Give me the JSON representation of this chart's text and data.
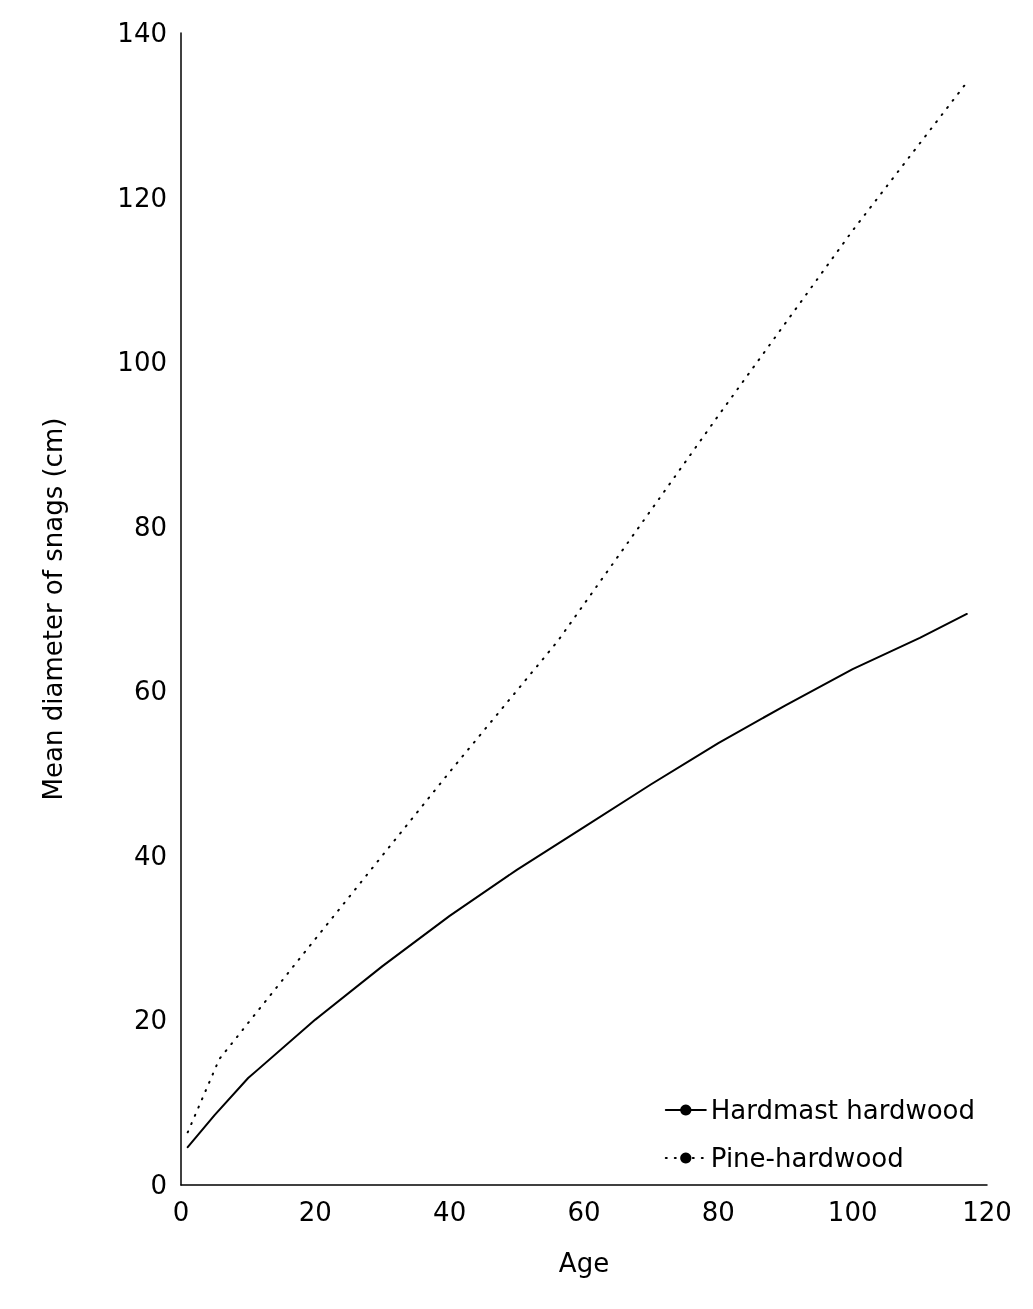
{
  "chart_data": {
    "type": "line",
    "xlabel": "Age",
    "ylabel": "Mean diameter of snags (cm)",
    "xlim": [
      0,
      120
    ],
    "ylim": [
      0,
      140
    ],
    "xticks": [
      0,
      20,
      40,
      60,
      80,
      100,
      120
    ],
    "yticks": [
      0,
      20,
      40,
      60,
      80,
      100,
      120,
      140
    ],
    "grid": false,
    "legend": "bottom right",
    "marker": "none",
    "series": [
      {
        "name": "Hardmast hardwood",
        "color": "#000000",
        "line_style": "solid",
        "x": [
          1,
          5,
          10,
          20,
          30,
          40,
          50,
          60,
          70,
          80,
          90,
          100,
          110,
          117
        ],
        "values": [
          4.6,
          8.5,
          13,
          20.1,
          26.6,
          32.7,
          38.3,
          43.5,
          48.7,
          53.7,
          58.3,
          62.7,
          66.5,
          69.4
        ]
      },
      {
        "name": "Pine-hardwood",
        "color": "#000000",
        "line_style": "dotted",
        "x": [
          1,
          5.7,
          20,
          40,
          56,
          80,
          100,
          117
        ],
        "values": [
          6.4,
          15.3,
          29.9,
          50.2,
          66,
          93.5,
          116,
          134
        ]
      }
    ]
  }
}
